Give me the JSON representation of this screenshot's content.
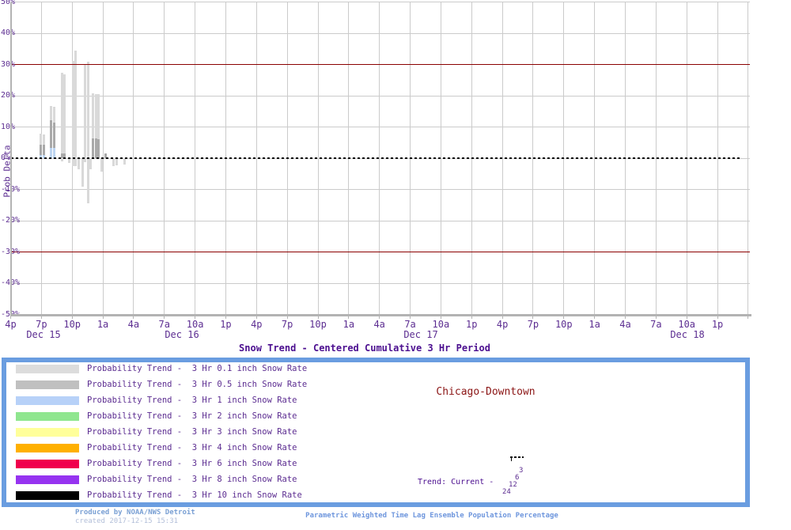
{
  "title": "Snow Trend - Centered Cumulative 3 Hr Period",
  "location": "Chicago-Downtown",
  "footer": {
    "produced_by": "Produced by NOAA/NWS Detroit",
    "created": "created 2017-12-15 15:31",
    "description": "Parametric Weighted Time Lag Ensemble Population Percentage"
  },
  "colors": {
    "grid": "#cbcbcb",
    "axis": "#b3b3b3",
    "threshold": "#8b0000",
    "zero_line": "#000000",
    "bar_light": "#d9d9d9",
    "bar_dark": "#a9a9a9",
    "bar_blue": "#bdd5f2",
    "tick_label": "#5c2d91",
    "title": "#4b0e8f",
    "location": "#8b1515",
    "legend_border": "#6a9de0",
    "footer_main": "#7aa0d4",
    "footer_created": "#b3bfd9",
    "footer_desc": "#6e96dd"
  },
  "legend": {
    "items": [
      {
        "color": "#dcdcdc",
        "label": "Probability Trend -  3 Hr 0.1 inch Snow Rate"
      },
      {
        "color": "#c0c0c0",
        "label": "Probability Trend -  3 Hr 0.5 inch Snow Rate"
      },
      {
        "color": "#b7d1f8",
        "label": "Probability Trend -  3 Hr 1 inch Snow Rate"
      },
      {
        "color": "#8fe68f",
        "label": "Probability Trend -  3 Hr 2 inch Snow Rate"
      },
      {
        "color": "#ffff9a",
        "label": "Probability Trend -  3 Hr 3 inch Snow Rate"
      },
      {
        "color": "#ffb000",
        "label": "Probability Trend -  3 Hr 4 inch Snow Rate"
      },
      {
        "color": "#f0004d",
        "label": "Probability Trend -  3 Hr 6 inch Snow Rate"
      },
      {
        "color": "#9633f0",
        "label": "Probability Trend -  3 Hr 8 inch Snow Rate"
      },
      {
        "color": "#000000",
        "label": "Probability Trend -  3 Hr 10 inch Snow Rate"
      }
    ],
    "trend_label": "Trend: Current -",
    "trend_ages": [
      "3",
      "6",
      "12",
      "24"
    ]
  },
  "chart_data": {
    "type": "bar",
    "title": "Snow Trend - Centered Cumulative 3 Hr Period",
    "ylabel": "Prob Delta",
    "ylim": [
      -50,
      50
    ],
    "y_tick_step": 10,
    "y_ticks": [
      "50%",
      "40%",
      "30%",
      "20%",
      "10%",
      "0%",
      "-10%",
      "-20%",
      "-30%",
      "-40%",
      "-50%"
    ],
    "x_ticks": [
      "4p",
      "7p",
      "10p",
      "1a",
      "4a",
      "7a",
      "10a",
      "1p",
      "4p",
      "7p",
      "10p",
      "1a",
      "4a",
      "7a",
      "10a",
      "1p",
      "4p",
      "7p",
      "10p",
      "1a",
      "4a",
      "7a",
      "10a",
      "1p"
    ],
    "date_labels": [
      {
        "text": "Dec 15",
        "cx": 55
      },
      {
        "text": "Dec 16",
        "cx": 230
      },
      {
        "text": "Dec 17",
        "cx": 532
      },
      {
        "text": "Dec 18",
        "cx": 869
      }
    ],
    "threshold_lines_pct": [
      30,
      -30
    ],
    "zero_line_pct": 0,
    "grid": true,
    "legend_position": "bottom",
    "bars_pct": [
      {
        "x": 51.5,
        "light_top": 7.8,
        "dark_top": 4.4,
        "blue_top": 0.9,
        "low": 0
      },
      {
        "x": 55.5,
        "light_top": 7.6,
        "dark_top": 4.4,
        "blue_top": 0.9,
        "low": 0
      },
      {
        "x": 64.0,
        "light_top": 16.6,
        "dark_top": 12.2,
        "blue_top": 3.2,
        "low": 0
      },
      {
        "x": 68.0,
        "light_top": 16.5,
        "dark_top": 11.4,
        "blue_top": 3.2,
        "low": 0
      },
      {
        "x": 78.0,
        "light_top": 27.3,
        "dark_top": 1.6,
        "blue_top": 0,
        "low": -1.0
      },
      {
        "x": 81.5,
        "light_top": 26.9,
        "dark_top": 1.6,
        "blue_top": 0,
        "low": 0
      },
      {
        "x": 87.5,
        "light_top": 0,
        "dark_top": 0,
        "blue_top": 0,
        "low": -1.6
      },
      {
        "x": 92.0,
        "light_top": 31.2,
        "dark_top": 0,
        "blue_top": 0,
        "low": -2.6
      },
      {
        "x": 95.5,
        "light_top": 34.5,
        "dark_top": 0,
        "blue_top": 0,
        "low": -2.6
      },
      {
        "x": 99.0,
        "light_top": 0,
        "dark_top": 0,
        "blue_top": 0,
        "low": -3.6
      },
      {
        "x": 104.0,
        "light_top": 0,
        "dark_top": 0,
        "blue_top": 0,
        "low": -9.0
      },
      {
        "x": 107.5,
        "light_top": 29.8,
        "dark_top": 0,
        "blue_top": 0,
        "low": -1.2
      },
      {
        "x": 111.0,
        "light_top": 31.0,
        "dark_top": 0,
        "blue_top": 0,
        "low": -14.4
      },
      {
        "x": 114.5,
        "light_top": 0,
        "dark_top": 0,
        "blue_top": 0,
        "low": -3.6
      },
      {
        "x": 117.5,
        "light_top": 20.8,
        "dark_top": 6.3,
        "blue_top": 0,
        "low": 0
      },
      {
        "x": 121.0,
        "light_top": 20.6,
        "dark_top": 6.3,
        "blue_top": 0,
        "low": 0
      },
      {
        "x": 124.5,
        "light_top": 20.6,
        "dark_top": 6.0,
        "blue_top": 0,
        "low": 0
      },
      {
        "x": 128.0,
        "light_top": 0,
        "dark_top": 0,
        "blue_top": 0,
        "low": -4.4
      },
      {
        "x": 133.0,
        "light_top": 1.4,
        "dark_top": 1.4,
        "blue_top": 0,
        "low": 0
      },
      {
        "x": 143.0,
        "light_top": 0,
        "dark_top": 0,
        "blue_top": 0,
        "low": -2.6
      },
      {
        "x": 147.0,
        "light_top": 0,
        "dark_top": 0,
        "blue_top": 0,
        "low": -2.4
      },
      {
        "x": 157.0,
        "light_top": 0,
        "dark_top": 0,
        "blue_top": 0,
        "low": -2.0
      }
    ]
  }
}
